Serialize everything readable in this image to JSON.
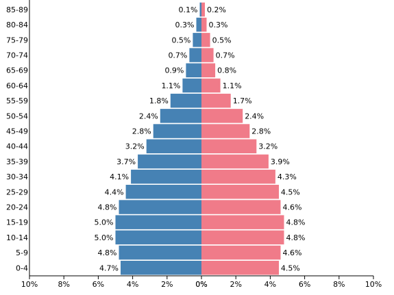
{
  "chart_data": {
    "type": "bar",
    "orientation": "horizontal",
    "layout": "population-pyramid",
    "categories": [
      "0-4",
      "5-9",
      "10-14",
      "15-19",
      "20-24",
      "25-29",
      "30-34",
      "35-39",
      "40-44",
      "45-49",
      "50-54",
      "55-59",
      "60-64",
      "65-69",
      "70-74",
      "75-79",
      "80-84",
      "85-89"
    ],
    "series": [
      {
        "side": "left",
        "color": "#4682b4",
        "values": [
          4.7,
          4.8,
          5.0,
          5.0,
          4.8,
          4.4,
          4.1,
          3.7,
          3.2,
          2.8,
          2.4,
          1.8,
          1.1,
          0.9,
          0.7,
          0.5,
          0.3,
          0.1
        ],
        "labels": [
          "4.7%",
          "4.8%",
          "5.0%",
          "5.0%",
          "4.8%",
          "4.4%",
          "4.1%",
          "3.7%",
          "3.2%",
          "2.8%",
          "2.4%",
          "1.8%",
          "1.1%",
          "0.9%",
          "0.7%",
          "0.5%",
          "0.3%",
          "0.1%"
        ]
      },
      {
        "side": "right",
        "color": "#f07b89",
        "values": [
          4.5,
          4.6,
          4.8,
          4.8,
          4.6,
          4.5,
          4.3,
          3.9,
          3.2,
          2.8,
          2.4,
          1.7,
          1.1,
          0.8,
          0.7,
          0.5,
          0.3,
          0.2
        ],
        "labels": [
          "4.5%",
          "4.6%",
          "4.8%",
          "4.8%",
          "4.6%",
          "4.5%",
          "4.3%",
          "3.9%",
          "3.2%",
          "2.8%",
          "2.4%",
          "1.7%",
          "1.1%",
          "0.8%",
          "0.7%",
          "0.5%",
          "0.3%",
          "0.2%"
        ]
      }
    ],
    "xlim": [
      0,
      10
    ],
    "xticks_left": [
      "10%",
      "8%",
      "6%",
      "4%",
      "2%",
      "0%"
    ],
    "xticks_right": [
      "0%",
      "2%",
      "4%",
      "6%",
      "8%",
      "10%"
    ],
    "title": "",
    "xlabel": "",
    "ylabel": "",
    "grid": false,
    "legend": "none"
  }
}
